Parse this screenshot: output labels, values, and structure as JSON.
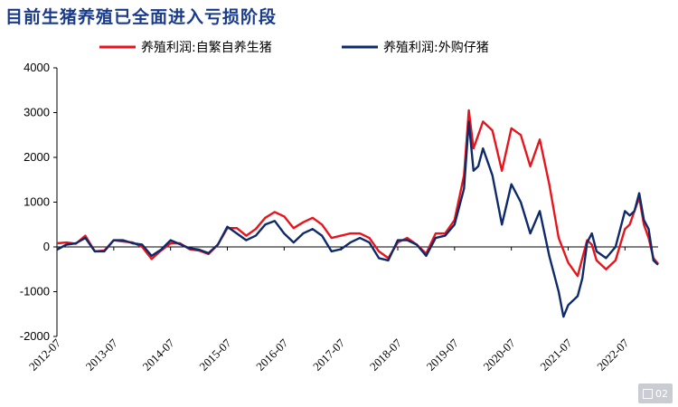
{
  "chart_data": {
    "type": "line",
    "title": "目前生猪养殖已全面进入亏损阶段",
    "xlabel": "",
    "ylabel": "",
    "ylim": [
      -2000,
      4000
    ],
    "yticks": [
      -2000,
      -1000,
      0,
      1000,
      2000,
      3000,
      4000
    ],
    "xticks": [
      "2012-07",
      "2013-07",
      "2014-07",
      "2015-07",
      "2016-07",
      "2017-07",
      "2018-07",
      "2019-07",
      "2020-07",
      "2021-07",
      "2022-07"
    ],
    "legend_position": "top",
    "grid": false,
    "x_start": "2012-07",
    "x_end": "2023-02",
    "series": [
      {
        "name": "养殖利润:自繁自养生猪",
        "color": "#e8141b",
        "points": [
          [
            "2012-07",
            80
          ],
          [
            "2012-09",
            100
          ],
          [
            "2012-11",
            70
          ],
          [
            "2013-01",
            250
          ],
          [
            "2013-03",
            -100
          ],
          [
            "2013-05",
            -80
          ],
          [
            "2013-07",
            150
          ],
          [
            "2013-09",
            120
          ],
          [
            "2013-11",
            100
          ],
          [
            "2014-01",
            0
          ],
          [
            "2014-03",
            -270
          ],
          [
            "2014-05",
            -80
          ],
          [
            "2014-07",
            80
          ],
          [
            "2014-09",
            80
          ],
          [
            "2014-11",
            -50
          ],
          [
            "2015-01",
            -80
          ],
          [
            "2015-03",
            -160
          ],
          [
            "2015-05",
            50
          ],
          [
            "2015-07",
            420
          ],
          [
            "2015-09",
            420
          ],
          [
            "2015-11",
            250
          ],
          [
            "2016-01",
            400
          ],
          [
            "2016-03",
            650
          ],
          [
            "2016-05",
            780
          ],
          [
            "2016-07",
            680
          ],
          [
            "2016-09",
            420
          ],
          [
            "2016-11",
            550
          ],
          [
            "2017-01",
            650
          ],
          [
            "2017-03",
            500
          ],
          [
            "2017-05",
            200
          ],
          [
            "2017-07",
            250
          ],
          [
            "2017-09",
            300
          ],
          [
            "2017-11",
            300
          ],
          [
            "2018-01",
            200
          ],
          [
            "2018-03",
            -100
          ],
          [
            "2018-05",
            -250
          ],
          [
            "2018-07",
            100
          ],
          [
            "2018-09",
            200
          ],
          [
            "2018-11",
            50
          ],
          [
            "2019-01",
            -150
          ],
          [
            "2019-03",
            300
          ],
          [
            "2019-05",
            300
          ],
          [
            "2019-07",
            600
          ],
          [
            "2019-09",
            1600
          ],
          [
            "2019-10",
            3050
          ],
          [
            "2019-11",
            2200
          ],
          [
            "2019-12",
            2500
          ],
          [
            "2020-01",
            2800
          ],
          [
            "2020-03",
            2600
          ],
          [
            "2020-05",
            1700
          ],
          [
            "2020-07",
            2650
          ],
          [
            "2020-09",
            2500
          ],
          [
            "2020-11",
            1800
          ],
          [
            "2021-01",
            2400
          ],
          [
            "2021-03",
            1400
          ],
          [
            "2021-05",
            200
          ],
          [
            "2021-07",
            -350
          ],
          [
            "2021-09",
            -650
          ],
          [
            "2021-10",
            -250
          ],
          [
            "2021-11",
            150
          ],
          [
            "2021-12",
            50
          ],
          [
            "2022-01",
            -300
          ],
          [
            "2022-03",
            -500
          ],
          [
            "2022-05",
            -300
          ],
          [
            "2022-07",
            400
          ],
          [
            "2022-08",
            500
          ],
          [
            "2022-09",
            800
          ],
          [
            "2022-10",
            1100
          ],
          [
            "2022-11",
            500
          ],
          [
            "2022-12",
            200
          ],
          [
            "2023-01",
            -250
          ],
          [
            "2023-02",
            -380
          ]
        ]
      },
      {
        "name": "养殖利润:外购仔猪",
        "color": "#0e2a6b",
        "points": [
          [
            "2012-07",
            -60
          ],
          [
            "2012-09",
            50
          ],
          [
            "2012-11",
            80
          ],
          [
            "2013-01",
            200
          ],
          [
            "2013-03",
            -100
          ],
          [
            "2013-05",
            -100
          ],
          [
            "2013-07",
            150
          ],
          [
            "2013-09",
            150
          ],
          [
            "2013-11",
            80
          ],
          [
            "2014-01",
            50
          ],
          [
            "2014-03",
            -200
          ],
          [
            "2014-05",
            -60
          ],
          [
            "2014-07",
            150
          ],
          [
            "2014-09",
            60
          ],
          [
            "2014-11",
            -30
          ],
          [
            "2015-01",
            -60
          ],
          [
            "2015-03",
            -140
          ],
          [
            "2015-05",
            50
          ],
          [
            "2015-07",
            450
          ],
          [
            "2015-09",
            300
          ],
          [
            "2015-11",
            150
          ],
          [
            "2016-01",
            250
          ],
          [
            "2016-03",
            500
          ],
          [
            "2016-05",
            580
          ],
          [
            "2016-07",
            300
          ],
          [
            "2016-09",
            100
          ],
          [
            "2016-11",
            300
          ],
          [
            "2017-01",
            400
          ],
          [
            "2017-03",
            250
          ],
          [
            "2017-05",
            -100
          ],
          [
            "2017-07",
            -50
          ],
          [
            "2017-09",
            100
          ],
          [
            "2017-11",
            200
          ],
          [
            "2018-01",
            100
          ],
          [
            "2018-03",
            -250
          ],
          [
            "2018-05",
            -300
          ],
          [
            "2018-07",
            150
          ],
          [
            "2018-09",
            150
          ],
          [
            "2018-11",
            50
          ],
          [
            "2019-01",
            -200
          ],
          [
            "2019-03",
            200
          ],
          [
            "2019-05",
            250
          ],
          [
            "2019-07",
            500
          ],
          [
            "2019-09",
            1300
          ],
          [
            "2019-10",
            2800
          ],
          [
            "2019-11",
            1700
          ],
          [
            "2019-12",
            1800
          ],
          [
            "2020-01",
            2200
          ],
          [
            "2020-03",
            1600
          ],
          [
            "2020-05",
            500
          ],
          [
            "2020-07",
            1400
          ],
          [
            "2020-09",
            1000
          ],
          [
            "2020-11",
            300
          ],
          [
            "2021-01",
            800
          ],
          [
            "2021-03",
            -200
          ],
          [
            "2021-05",
            -1000
          ],
          [
            "2021-06",
            -1560
          ],
          [
            "2021-07",
            -1300
          ],
          [
            "2021-09",
            -1100
          ],
          [
            "2021-10",
            -700
          ],
          [
            "2021-11",
            100
          ],
          [
            "2021-12",
            300
          ],
          [
            "2022-01",
            -100
          ],
          [
            "2022-03",
            -250
          ],
          [
            "2022-05",
            0
          ],
          [
            "2022-07",
            800
          ],
          [
            "2022-08",
            700
          ],
          [
            "2022-09",
            800
          ],
          [
            "2022-10",
            1200
          ],
          [
            "2022-11",
            600
          ],
          [
            "2022-12",
            400
          ],
          [
            "2023-01",
            -300
          ],
          [
            "2023-02",
            -400
          ]
        ]
      }
    ]
  },
  "badge": {
    "icon": "qr-icon",
    "text": "02"
  }
}
